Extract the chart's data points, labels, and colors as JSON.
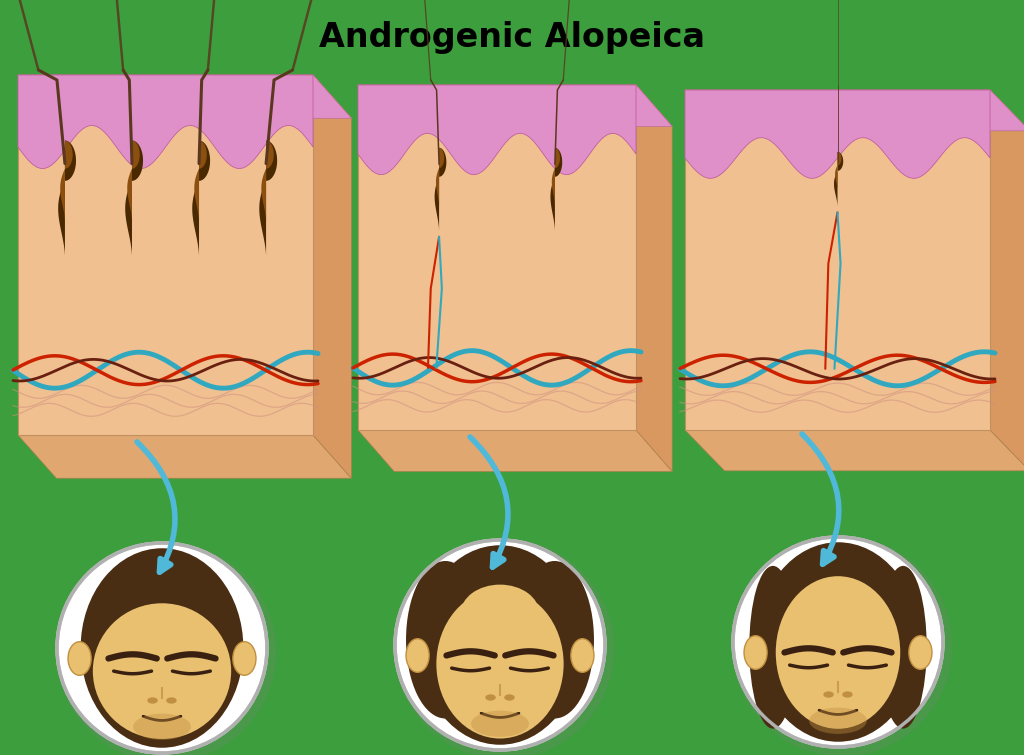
{
  "title": "Androgenic Alopeica",
  "title_fontsize": 24,
  "title_fontweight": "bold",
  "bg_color": "#3d9e3d",
  "skin_color": "#f0c090",
  "skin_dark": "#e0a870",
  "skin_right": "#d89860",
  "pink_color": "#e090c8",
  "pink_dark": "#c060a0",
  "pink_light": "#f0b0d8",
  "hair_shaft_color": "#5a3820",
  "follicle_color": "#8B5010",
  "follicle_light": "#c08040",
  "follicle_dark": "#4a2800",
  "blood_blue": "#2090a8",
  "blood_blue2": "#30a8c0",
  "blood_red": "#cc2200",
  "blood_dark": "#6a2010",
  "fiber_col": "#d09080",
  "arrow_color": "#50b8d8",
  "face_skin": "#e8c070",
  "face_dark": "#c09040",
  "hair_brown": "#4a2e14",
  "hair_brown2": "#3a2010",
  "circle_bg": "#ffffff",
  "shadow_col": "#aaaaaa"
}
